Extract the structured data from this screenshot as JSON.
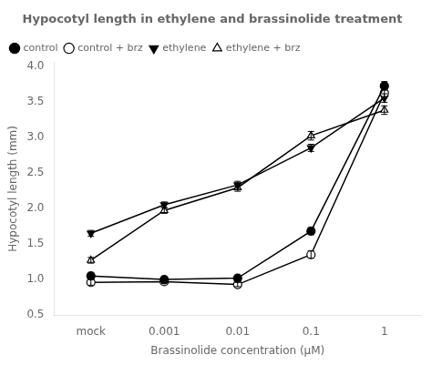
{
  "chart_data": {
    "type": "line",
    "title": "Hypocotyl length in ethylene and brassinolide treatment",
    "x_label": "Brassinolide concentration (μM)",
    "y_label": "Hypocotyl length (mm)",
    "categories": [
      "mock",
      "0.001",
      "0.01",
      "0.1",
      "1"
    ],
    "series": [
      {
        "name": "control",
        "values": [
          1.05,
          1.0,
          1.02,
          1.68,
          3.72
        ],
        "errors": [
          0.04,
          0.03,
          0.04,
          0.05,
          0.06
        ],
        "marker": "filled-circle",
        "color": "black",
        "line_style": "solid"
      },
      {
        "name": "control + brz",
        "values": [
          0.96,
          0.97,
          0.93,
          1.35,
          3.62
        ],
        "errors": [
          0.04,
          0.03,
          0.03,
          0.05,
          0.05
        ],
        "marker": "open-circle",
        "color": "black",
        "line_style": "solid"
      },
      {
        "name": "ethylene",
        "values": [
          1.65,
          2.05,
          2.33,
          2.85,
          3.55
        ],
        "errors": [
          0.04,
          0.04,
          0.05,
          0.05,
          0.06
        ],
        "marker": "filled-triangle-down",
        "color": "black",
        "line_style": "solid"
      },
      {
        "name": "ethylene + brz",
        "values": [
          1.27,
          1.97,
          2.29,
          3.02,
          3.38
        ],
        "errors": [
          0.04,
          0.04,
          0.05,
          0.06,
          0.06
        ],
        "marker": "open-triangle-up",
        "color": "black",
        "line_style": "solid"
      }
    ],
    "ylim": [
      0.5,
      4.05
    ],
    "yticks": [
      0.5,
      {
        "value": 1.0,
        "label": "1.0"
      },
      1.5,
      {
        "value": 2.0,
        "label": "2.0"
      },
      2.5,
      {
        "value": 3.0,
        "label": "3.0"
      },
      3.5,
      {
        "value": 4.0,
        "label": "4.0"
      }
    ],
    "grid": false,
    "legend": "upper left"
  }
}
